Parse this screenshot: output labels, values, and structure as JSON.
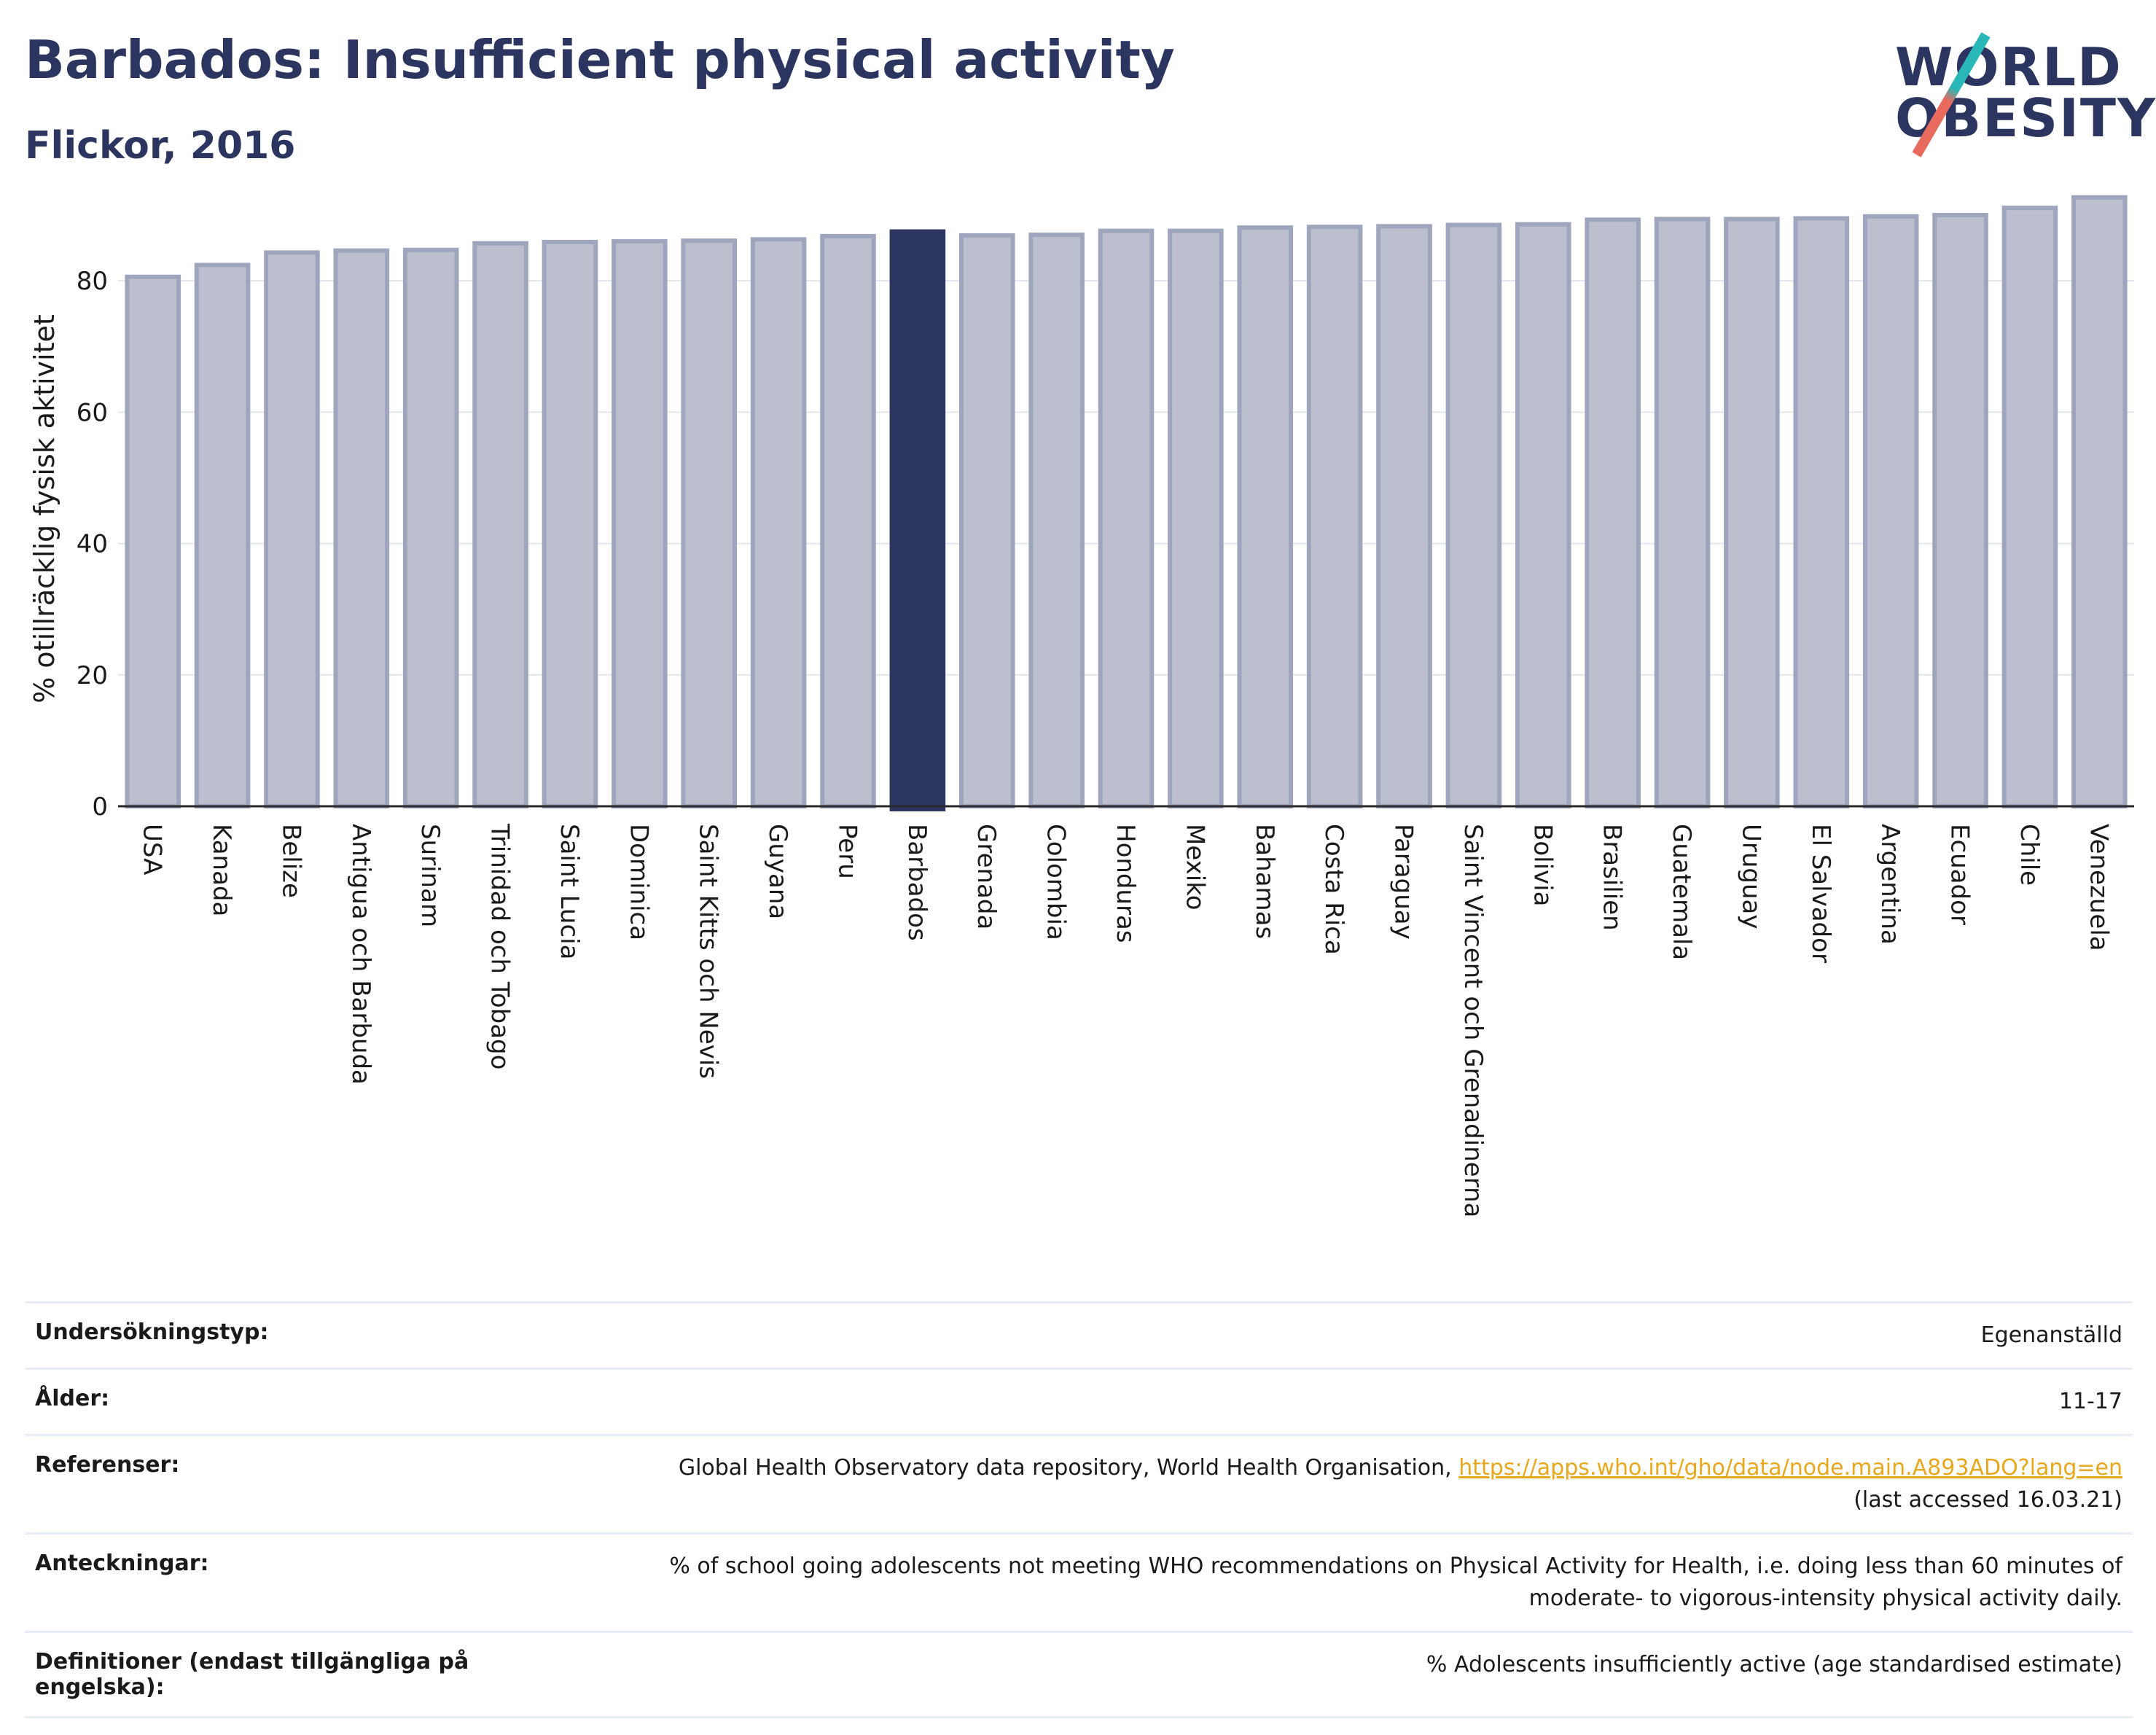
{
  "header": {
    "title": "Barbados: Insufficient physical activity",
    "subtitle": "Flickor, 2016"
  },
  "logo": {
    "line1": "WORLD",
    "line2": "OBESITY"
  },
  "colors": {
    "highlight": "#2b3560",
    "bar_fill": "#bcc0ce",
    "bar_stroke": "#9fa5bd",
    "accent_link": "#e8a81e"
  },
  "chart_data": {
    "type": "bar",
    "ylabel": "% otillräcklig fysisk aktivitet",
    "ylim": [
      0,
      95
    ],
    "yticks": [
      0,
      20,
      40,
      60,
      80
    ],
    "grid": true,
    "highlight": "Barbados",
    "categories": [
      "USA",
      "Kanada",
      "Belize",
      "Antigua och Barbuda",
      "Surinam",
      "Trinidad och Tobago",
      "Saint Lucia",
      "Dominica",
      "Saint Kitts och Nevis",
      "Guyana",
      "Peru",
      "Barbados",
      "Grenada",
      "Colombia",
      "Honduras",
      "Mexiko",
      "Bahamas",
      "Costa Rica",
      "Paraguay",
      "Saint Vincent och Grenadinerna",
      "Bolivia",
      "Brasilien",
      "Guatemala",
      "Uruguay",
      "El Salvador",
      "Argentina",
      "Ecuador",
      "Chile",
      "Venezuela"
    ],
    "values": [
      80.6,
      82.4,
      84.3,
      84.6,
      84.7,
      85.7,
      85.9,
      86.0,
      86.1,
      86.3,
      86.8,
      87.5,
      86.9,
      87.0,
      87.6,
      87.6,
      88.1,
      88.2,
      88.3,
      88.5,
      88.6,
      89.3,
      89.4,
      89.4,
      89.5,
      89.8,
      90.0,
      91.1,
      92.7
    ]
  },
  "meta": {
    "rows": [
      {
        "label": "Undersökningstyp:",
        "value": "Egenanställd"
      },
      {
        "label": "Ålder:",
        "value": "11-17"
      },
      {
        "label": "Referenser:",
        "value": "Global Health Observatory data repository, World Health Organisation,",
        "link": "https://apps.who.int/gho/data/node.main.A893ADO?lang=en",
        "value2": "(last accessed 16.03.21)"
      },
      {
        "label": "Anteckningar:",
        "value": "% of school going adolescents not meeting WHO recommendations on Physical Activity for Health, i.e. doing less than 60 minutes of",
        "value2": "moderate- to vigorous-intensity physical activity daily."
      },
      {
        "label": "Definitioner (endast tillgängliga på engelska):",
        "value": "% Adolescents insufficiently active (age standardised estimate)"
      }
    ]
  }
}
